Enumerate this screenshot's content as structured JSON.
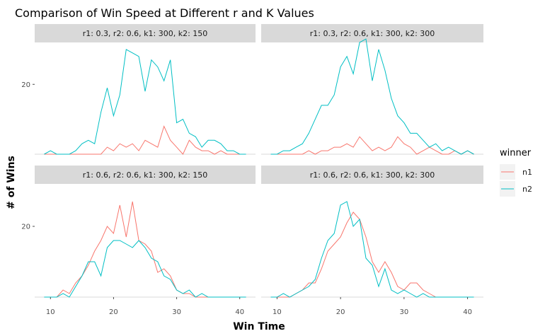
{
  "chart_data": {
    "type": "line",
    "title": "Comparison of Win Speed at Different r and K Values",
    "xlabel": "Win Time",
    "ylabel": "# of Wins",
    "x_ticks": [
      10,
      20,
      30,
      40
    ],
    "y_ticks": [
      20
    ],
    "xlim": [
      7.5,
      42.5
    ],
    "ylim": [
      0,
      32
    ],
    "legend": {
      "title": "winner",
      "entries": [
        {
          "name": "n1",
          "color": "#F8766D"
        },
        {
          "name": "n2",
          "color": "#00BFC4"
        }
      ]
    },
    "panels": [
      {
        "label": "r1: 0.3, r2: 0.6, k1: 300, k2: 150",
        "series": [
          {
            "name": "n1",
            "x": [
              9,
              10,
              11,
              12,
              13,
              14,
              15,
              16,
              17,
              18,
              19,
              20,
              21,
              22,
              23,
              24,
              25,
              26,
              27,
              28,
              29,
              30,
              31,
              32,
              33,
              34,
              35,
              36,
              37,
              38,
              39,
              40
            ],
            "y": [
              0,
              0,
              0,
              0,
              0,
              0,
              0,
              0,
              0,
              0,
              2,
              1,
              3,
              2,
              3,
              1,
              4,
              3,
              2,
              8,
              4,
              2,
              0,
              4,
              2,
              1,
              1,
              0,
              1,
              0,
              0,
              0
            ]
          },
          {
            "name": "n2",
            "x": [
              9,
              10,
              11,
              12,
              13,
              14,
              15,
              16,
              17,
              18,
              19,
              20,
              21,
              22,
              23,
              24,
              25,
              26,
              27,
              28,
              29,
              30,
              31,
              32,
              33,
              34,
              35,
              36,
              37,
              38,
              39,
              40,
              41
            ],
            "y": [
              0,
              1,
              0,
              0,
              0,
              1,
              3,
              4,
              3,
              12,
              19,
              11,
              17,
              30,
              29,
              28,
              18,
              27,
              25,
              21,
              27,
              9,
              10,
              6,
              5,
              2,
              4,
              4,
              3,
              1,
              1,
              0,
              0
            ]
          }
        ]
      },
      {
        "label": "r1: 0.3, r2: 0.6, k1: 300, k2: 300",
        "series": [
          {
            "name": "n1",
            "x": [
              9,
              10,
              11,
              12,
              13,
              14,
              15,
              16,
              17,
              18,
              19,
              20,
              21,
              22,
              23,
              24,
              25,
              26,
              27,
              28,
              29,
              30,
              31,
              32,
              33,
              34,
              35,
              36,
              37,
              38,
              39,
              40,
              41
            ],
            "y": [
              0,
              0,
              0,
              0,
              0,
              0,
              1,
              0,
              1,
              1,
              2,
              2,
              3,
              2,
              5,
              3,
              1,
              2,
              1,
              2,
              5,
              3,
              2,
              0,
              1,
              2,
              1,
              0,
              0,
              1,
              0,
              1,
              0
            ]
          },
          {
            "name": "n2",
            "x": [
              9,
              10,
              11,
              12,
              13,
              14,
              15,
              16,
              17,
              18,
              19,
              20,
              21,
              22,
              23,
              24,
              25,
              26,
              27,
              28,
              29,
              30,
              31,
              32,
              33,
              34,
              35,
              36,
              37,
              38,
              39,
              40,
              41
            ],
            "y": [
              0,
              0,
              1,
              1,
              2,
              3,
              6,
              10,
              14,
              14,
              17,
              25,
              28,
              23,
              32,
              33,
              21,
              30,
              24,
              16,
              11,
              9,
              6,
              6,
              4,
              2,
              3,
              1,
              2,
              1,
              0,
              1,
              0
            ]
          }
        ]
      },
      {
        "label": "r1: 0.6, r2: 0.6, k1: 300, k2: 150",
        "series": [
          {
            "name": "n1",
            "x": [
              9,
              10,
              11,
              12,
              13,
              14,
              15,
              16,
              17,
              18,
              19,
              20,
              21,
              22,
              23,
              24,
              25,
              26,
              27,
              28,
              29,
              30,
              31,
              32,
              33,
              34,
              35,
              36,
              37,
              38,
              39,
              40,
              41
            ],
            "y": [
              0,
              0,
              0,
              2,
              1,
              4,
              6,
              9,
              13,
              16,
              20,
              18,
              26,
              17,
              27,
              16,
              15,
              13,
              7,
              8,
              6,
              2,
              1,
              1,
              0,
              0,
              0,
              0,
              0,
              0,
              0,
              0,
              0
            ]
          },
          {
            "name": "n2",
            "x": [
              9,
              10,
              11,
              12,
              13,
              14,
              15,
              16,
              17,
              18,
              19,
              20,
              21,
              22,
              23,
              24,
              25,
              26,
              27,
              28,
              29,
              30,
              31,
              32,
              33,
              34,
              35,
              36,
              37,
              38,
              39,
              40,
              41
            ],
            "y": [
              0,
              0,
              0,
              1,
              0,
              3,
              6,
              10,
              10,
              6,
              14,
              16,
              16,
              15,
              14,
              16,
              14,
              11,
              10,
              6,
              5,
              2,
              1,
              2,
              0,
              1,
              0,
              0,
              0,
              0,
              0,
              0,
              0
            ]
          }
        ]
      },
      {
        "label": "r1: 0.6, r2: 0.6, k1: 300, k2: 300",
        "series": [
          {
            "name": "n1",
            "x": [
              9,
              10,
              11,
              12,
              13,
              14,
              15,
              16,
              17,
              18,
              19,
              20,
              21,
              22,
              23,
              24,
              25,
              26,
              27,
              28,
              29,
              30,
              31,
              32,
              33,
              34,
              35,
              36,
              37,
              38,
              39,
              40,
              41
            ],
            "y": [
              0,
              0,
              0,
              0,
              1,
              2,
              4,
              4,
              8,
              13,
              15,
              17,
              21,
              24,
              22,
              17,
              10,
              7,
              10,
              7,
              3,
              2,
              4,
              4,
              2,
              1,
              0,
              0,
              0,
              0,
              0,
              0,
              0
            ]
          },
          {
            "name": "n2",
            "x": [
              9,
              10,
              11,
              12,
              13,
              14,
              15,
              16,
              17,
              18,
              19,
              20,
              21,
              22,
              23,
              24,
              25,
              26,
              27,
              28,
              29,
              30,
              31,
              32,
              33,
              34,
              35,
              36,
              37,
              38,
              39,
              40,
              41
            ],
            "y": [
              0,
              0,
              1,
              0,
              1,
              2,
              3,
              5,
              11,
              16,
              18,
              26,
              27,
              20,
              22,
              11,
              9,
              3,
              8,
              2,
              1,
              2,
              1,
              0,
              1,
              0,
              0,
              0,
              0,
              0,
              0,
              0,
              0
            ]
          }
        ]
      }
    ]
  }
}
